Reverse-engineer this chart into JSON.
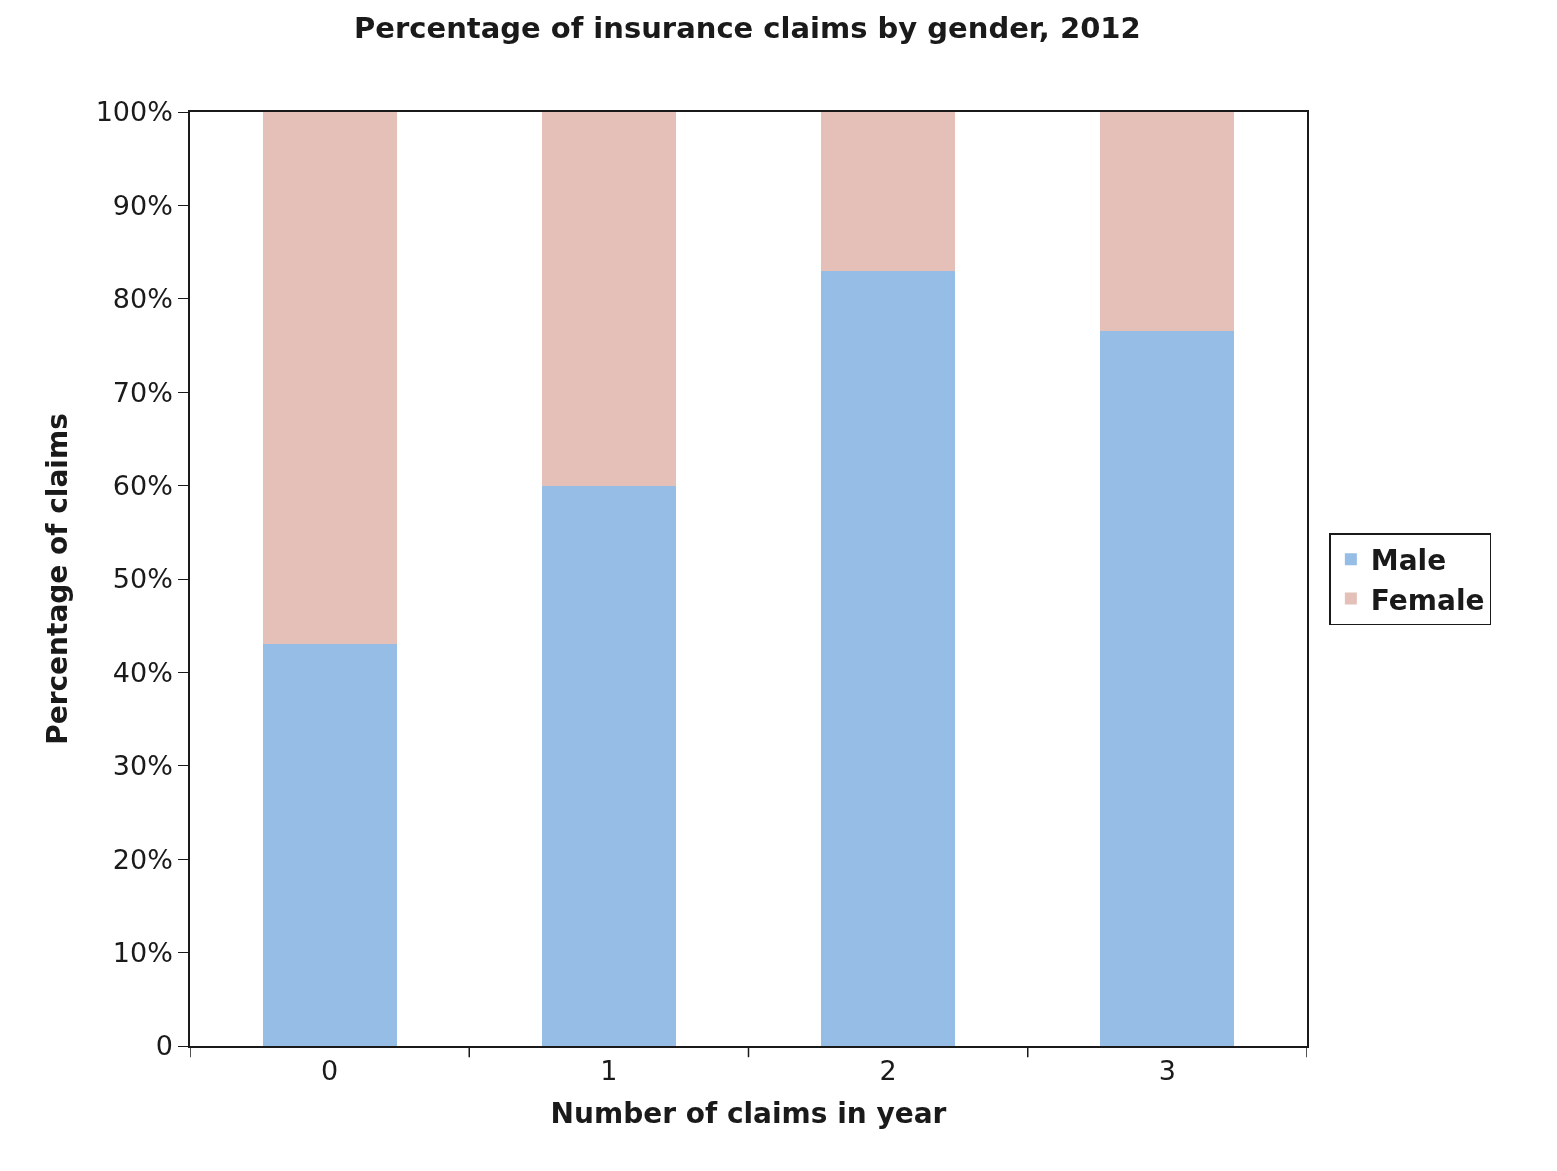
{
  "chart_data": {
    "type": "bar",
    "title": "Percentage of insurance claims by gender, 2012",
    "xlabel": "Number of claims in year",
    "ylabel": "Percentage of claims",
    "categories": [
      "0",
      "1",
      "2",
      "3"
    ],
    "stacked": true,
    "legend": "right",
    "grid": false,
    "series": [
      {
        "name": "Male",
        "color": "#95bde5",
        "values": [
          43,
          60,
          83,
          76.5
        ]
      },
      {
        "name": "Female",
        "color": "#e4c0b9",
        "values": [
          57,
          40,
          17,
          23.5
        ]
      }
    ],
    "ylim": [
      0,
      100
    ],
    "yticks": [
      {
        "value": 0,
        "label": "0"
      },
      {
        "value": 10,
        "label": "10%"
      },
      {
        "value": 20,
        "label": "20%"
      },
      {
        "value": 30,
        "label": "30%"
      },
      {
        "value": 40,
        "label": "40%"
      },
      {
        "value": 50,
        "label": "50%"
      },
      {
        "value": 60,
        "label": "60%"
      },
      {
        "value": 70,
        "label": "70%"
      },
      {
        "value": 80,
        "label": "80%"
      },
      {
        "value": 90,
        "label": "90%"
      },
      {
        "value": 100,
        "label": "100%"
      }
    ]
  }
}
